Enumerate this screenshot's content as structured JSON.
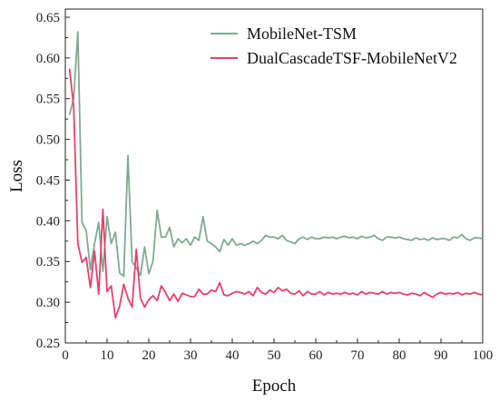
{
  "chart_data": {
    "type": "line",
    "xlabel": "Epoch",
    "ylabel": "Loss",
    "xlim": [
      0,
      100
    ],
    "ylim": [
      0.25,
      0.66
    ],
    "x_ticks": [
      0,
      10,
      20,
      30,
      40,
      50,
      60,
      70,
      80,
      90,
      100
    ],
    "y_ticks": [
      0.25,
      0.3,
      0.35,
      0.4,
      0.45,
      0.5,
      0.55,
      0.6,
      0.65
    ],
    "y_tick_labels": [
      "0.25",
      "0.30",
      "0.35",
      "0.40",
      "0.45",
      "0.50",
      "0.55",
      "0.60",
      "0.65"
    ],
    "grid": false,
    "legend_position": "top-right",
    "series": [
      {
        "name": "MobileNet-TSM",
        "color": "#7faa93",
        "x": [
          1,
          2,
          3,
          4,
          5,
          6,
          7,
          8,
          9,
          10,
          11,
          12,
          13,
          14,
          15,
          16,
          17,
          18,
          19,
          20,
          21,
          22,
          23,
          24,
          25,
          26,
          27,
          28,
          29,
          30,
          31,
          32,
          33,
          34,
          35,
          36,
          37,
          38,
          39,
          40,
          41,
          42,
          43,
          44,
          45,
          46,
          47,
          48,
          49,
          50,
          51,
          52,
          53,
          54,
          55,
          56,
          57,
          58,
          59,
          60,
          61,
          62,
          63,
          64,
          65,
          66,
          67,
          68,
          69,
          70,
          71,
          72,
          73,
          74,
          75,
          76,
          77,
          78,
          79,
          80,
          81,
          82,
          83,
          84,
          85,
          86,
          87,
          88,
          89,
          90,
          91,
          92,
          93,
          94,
          95,
          96,
          97,
          98,
          99,
          100
        ],
        "y": [
          0.53,
          0.55,
          0.632,
          0.398,
          0.388,
          0.34,
          0.372,
          0.398,
          0.338,
          0.405,
          0.372,
          0.386,
          0.336,
          0.332,
          0.48,
          0.35,
          0.342,
          0.333,
          0.368,
          0.335,
          0.35,
          0.413,
          0.38,
          0.38,
          0.392,
          0.368,
          0.378,
          0.373,
          0.378,
          0.37,
          0.38,
          0.376,
          0.405,
          0.375,
          0.372,
          0.368,
          0.362,
          0.377,
          0.37,
          0.378,
          0.37,
          0.372,
          0.37,
          0.372,
          0.375,
          0.372,
          0.376,
          0.382,
          0.38,
          0.38,
          0.378,
          0.382,
          0.376,
          0.374,
          0.372,
          0.378,
          0.38,
          0.377,
          0.38,
          0.378,
          0.378,
          0.38,
          0.379,
          0.38,
          0.378,
          0.38,
          0.381,
          0.379,
          0.38,
          0.378,
          0.381,
          0.379,
          0.38,
          0.382,
          0.378,
          0.376,
          0.38,
          0.38,
          0.379,
          0.38,
          0.378,
          0.377,
          0.376,
          0.379,
          0.377,
          0.378,
          0.376,
          0.379,
          0.377,
          0.378,
          0.378,
          0.376,
          0.38,
          0.379,
          0.383,
          0.378,
          0.376,
          0.379,
          0.379,
          0.378
        ]
      },
      {
        "name": "DualCascadeTSF-MobileNetV2",
        "color": "#e8406c",
        "x": [
          1,
          2,
          3,
          4,
          5,
          6,
          7,
          8,
          9,
          10,
          11,
          12,
          13,
          14,
          15,
          16,
          17,
          18,
          19,
          20,
          21,
          22,
          23,
          24,
          25,
          26,
          27,
          28,
          29,
          30,
          31,
          32,
          33,
          34,
          35,
          36,
          37,
          38,
          39,
          40,
          41,
          42,
          43,
          44,
          45,
          46,
          47,
          48,
          49,
          50,
          51,
          52,
          53,
          54,
          55,
          56,
          57,
          58,
          59,
          60,
          61,
          62,
          63,
          64,
          65,
          66,
          67,
          68,
          69,
          70,
          71,
          72,
          73,
          74,
          75,
          76,
          77,
          78,
          79,
          80,
          81,
          82,
          83,
          84,
          85,
          86,
          87,
          88,
          89,
          90,
          91,
          92,
          93,
          94,
          95,
          96,
          97,
          98,
          99,
          100
        ],
        "y": [
          0.587,
          0.54,
          0.372,
          0.349,
          0.355,
          0.318,
          0.363,
          0.31,
          0.414,
          0.313,
          0.32,
          0.281,
          0.295,
          0.322,
          0.305,
          0.294,
          0.365,
          0.305,
          0.294,
          0.303,
          0.308,
          0.302,
          0.32,
          0.312,
          0.302,
          0.31,
          0.301,
          0.311,
          0.309,
          0.307,
          0.307,
          0.316,
          0.31,
          0.31,
          0.315,
          0.313,
          0.324,
          0.309,
          0.308,
          0.311,
          0.313,
          0.312,
          0.31,
          0.313,
          0.308,
          0.318,
          0.312,
          0.31,
          0.315,
          0.312,
          0.318,
          0.314,
          0.316,
          0.311,
          0.31,
          0.314,
          0.308,
          0.313,
          0.31,
          0.31,
          0.313,
          0.309,
          0.312,
          0.31,
          0.311,
          0.31,
          0.312,
          0.31,
          0.311,
          0.309,
          0.313,
          0.31,
          0.312,
          0.311,
          0.31,
          0.313,
          0.31,
          0.312,
          0.311,
          0.312,
          0.31,
          0.309,
          0.311,
          0.31,
          0.308,
          0.312,
          0.309,
          0.306,
          0.31,
          0.312,
          0.31,
          0.311,
          0.31,
          0.312,
          0.309,
          0.311,
          0.31,
          0.312,
          0.31,
          0.309
        ]
      }
    ]
  }
}
